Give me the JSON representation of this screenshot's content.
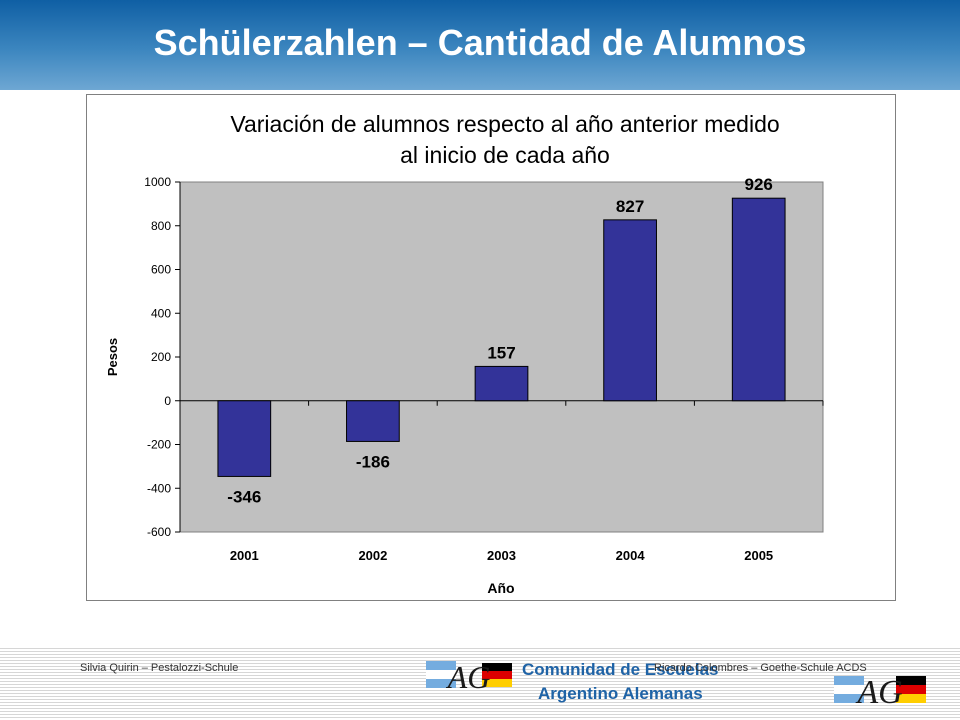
{
  "header": {
    "title": "Schülerzahlen – Cantidad de Alumnos"
  },
  "chart_data": {
    "type": "bar",
    "title_lines": [
      "Variación de alumnos respecto al año anterior medido",
      "al inicio de cada año"
    ],
    "categories": [
      "2001",
      "2002",
      "2003",
      "2004",
      "2005"
    ],
    "values": [
      -346,
      -186,
      157,
      827,
      926
    ],
    "data_labels": [
      "-346",
      "-186",
      "157",
      "827",
      "926"
    ],
    "xlabel": "Año",
    "ylabel": "Pesos",
    "ylim": [
      -600,
      1000
    ],
    "yticks": [
      1000,
      800,
      600,
      400,
      200,
      0,
      -200,
      -400,
      -600
    ],
    "grid": false,
    "legend": "none",
    "colors": {
      "bar": "#333399",
      "plot_bg": "#c0c0c0"
    }
  },
  "footer": {
    "left_credit": "Silvia Quirin  – Pestalozzi-Schule",
    "right_credit": "Ricardo Colombres – Goethe-Schule  ACDS",
    "org_line1": "Comunidad de Escuelas",
    "org_line2": "Argentino Alemanas",
    "logo_text": "AG",
    "logo_icon": "ag-flags-logo-icon"
  }
}
